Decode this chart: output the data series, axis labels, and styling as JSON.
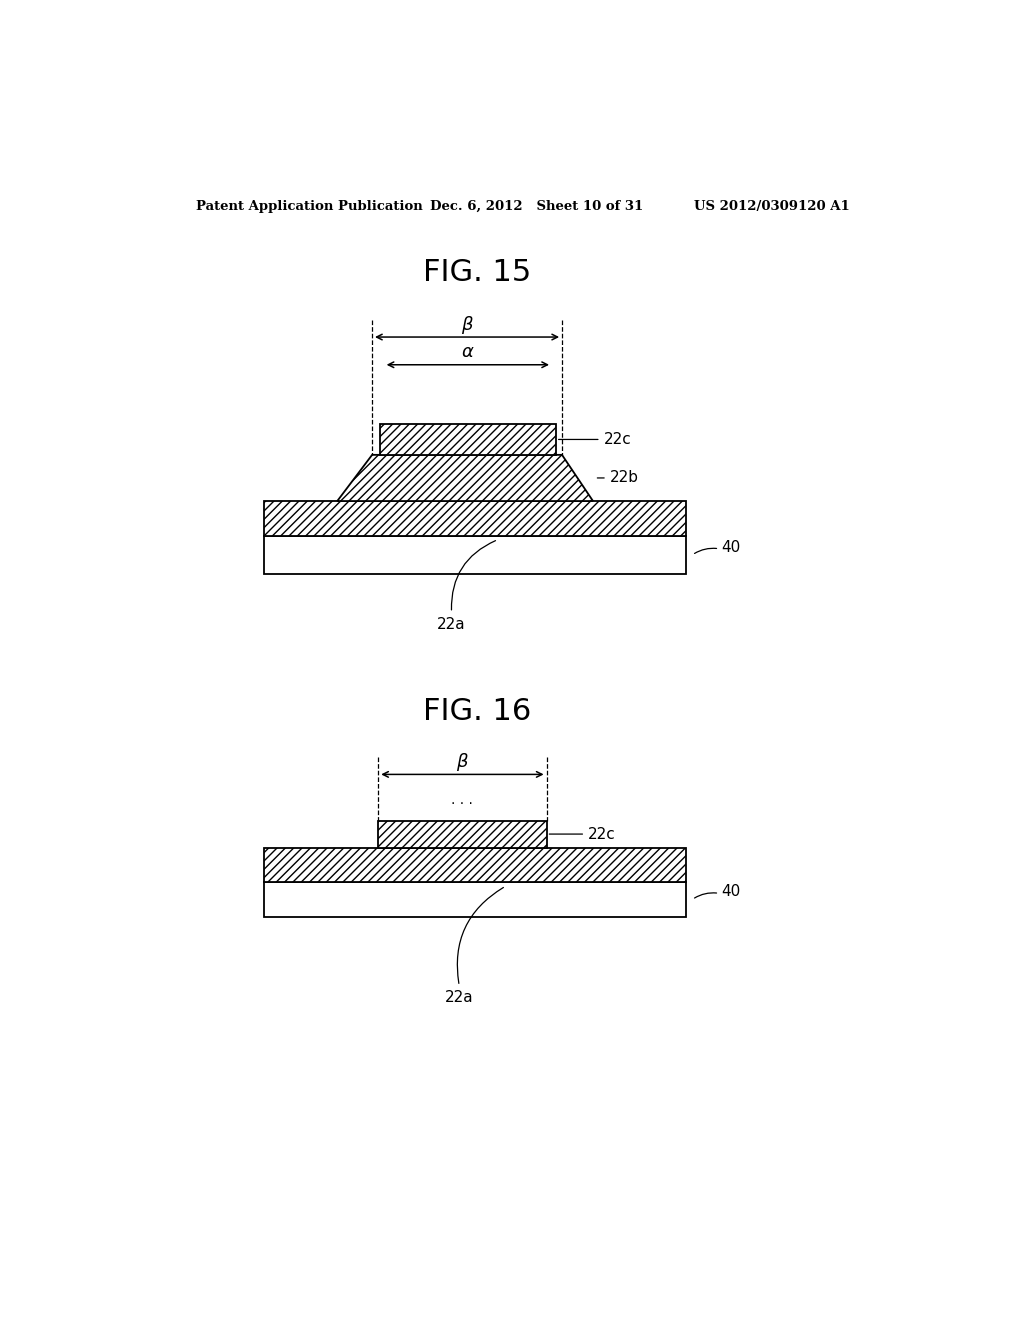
{
  "bg_color": "#ffffff",
  "header_left": "Patent Application Publication",
  "header_center": "Dec. 6, 2012   Sheet 10 of 31",
  "header_right": "US 2012/0309120 A1",
  "fig15_title": "FIG. 15",
  "fig16_title": "FIG. 16",
  "hatch_pattern": "////",
  "line_color": "#000000"
}
